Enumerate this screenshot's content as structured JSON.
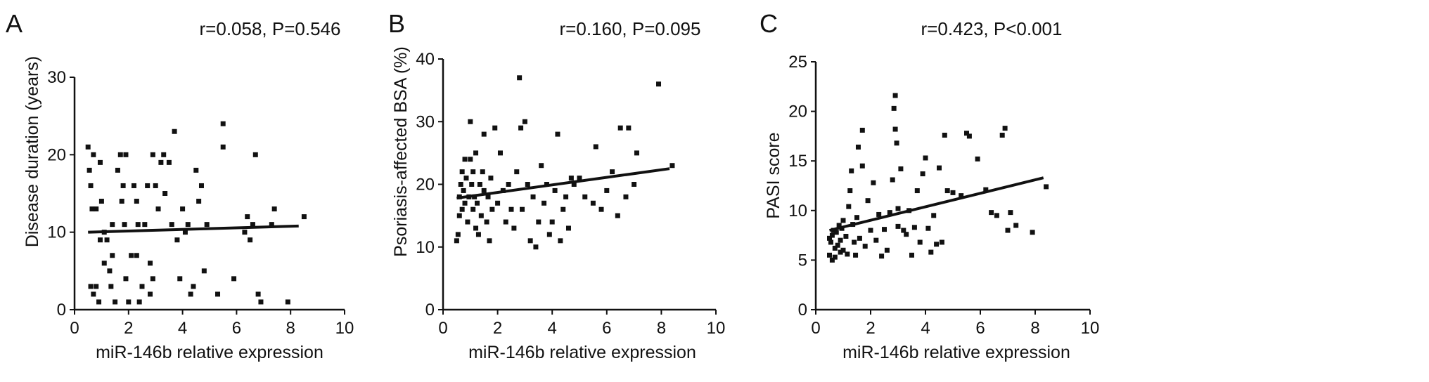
{
  "figure": {
    "panels": [
      {
        "letter": "A",
        "stats": "r=0.058, P=0.546"
      },
      {
        "letter": "B",
        "stats": "r=0.160, P=0.095"
      },
      {
        "letter": "C",
        "stats": "r=0.423, P<0.001"
      }
    ]
  },
  "chart_data": [
    {
      "type": "scatter",
      "title": "r=0.058, P=0.546",
      "xlabel": "miR-146b relative expression",
      "ylabel": "Disease duration (years)",
      "xlim": [
        0,
        10
      ],
      "ylim": [
        0,
        30
      ],
      "xticks": [
        0,
        2,
        4,
        6,
        8,
        10
      ],
      "yticks": [
        0,
        10,
        20,
        30
      ],
      "grid": false,
      "regression": {
        "x": [
          0.5,
          8.3
        ],
        "y": [
          10.0,
          10.8
        ]
      },
      "points": [
        [
          0.5,
          21
        ],
        [
          0.55,
          18
        ],
        [
          0.6,
          16
        ],
        [
          0.65,
          13
        ],
        [
          0.7,
          20
        ],
        [
          0.8,
          13
        ],
        [
          0.95,
          19
        ],
        [
          0.6,
          3
        ],
        [
          0.7,
          2
        ],
        [
          0.8,
          3
        ],
        [
          0.9,
          1
        ],
        [
          0.95,
          9
        ],
        [
          1.0,
          14
        ],
        [
          1.1,
          10
        ],
        [
          1.1,
          6
        ],
        [
          1.2,
          9
        ],
        [
          1.3,
          5
        ],
        [
          1.35,
          3
        ],
        [
          1.4,
          7
        ],
        [
          1.4,
          11
        ],
        [
          1.5,
          1
        ],
        [
          1.6,
          18
        ],
        [
          1.7,
          20
        ],
        [
          1.75,
          14
        ],
        [
          1.8,
          16
        ],
        [
          1.9,
          20
        ],
        [
          1.85,
          11
        ],
        [
          1.9,
          4
        ],
        [
          2.0,
          1
        ],
        [
          2.1,
          7
        ],
        [
          2.2,
          16
        ],
        [
          2.3,
          14
        ],
        [
          2.3,
          7
        ],
        [
          2.35,
          11
        ],
        [
          2.4,
          1
        ],
        [
          2.5,
          3
        ],
        [
          2.6,
          11
        ],
        [
          2.7,
          16
        ],
        [
          2.8,
          6
        ],
        [
          2.9,
          20
        ],
        [
          2.8,
          2
        ],
        [
          2.9,
          4
        ],
        [
          3.0,
          16
        ],
        [
          3.1,
          13
        ],
        [
          3.2,
          19
        ],
        [
          3.3,
          20
        ],
        [
          3.35,
          15
        ],
        [
          3.5,
          19
        ],
        [
          3.6,
          11
        ],
        [
          3.7,
          23
        ],
        [
          3.8,
          9
        ],
        [
          3.9,
          4
        ],
        [
          4.0,
          13
        ],
        [
          4.1,
          10
        ],
        [
          4.2,
          11
        ],
        [
          4.3,
          2
        ],
        [
          4.4,
          3
        ],
        [
          4.5,
          18
        ],
        [
          4.6,
          14
        ],
        [
          4.7,
          16
        ],
        [
          4.8,
          5
        ],
        [
          4.9,
          11
        ],
        [
          5.3,
          2
        ],
        [
          5.5,
          24
        ],
        [
          5.5,
          21
        ],
        [
          5.9,
          4
        ],
        [
          6.3,
          10
        ],
        [
          6.4,
          12
        ],
        [
          6.5,
          9
        ],
        [
          6.6,
          11
        ],
        [
          6.7,
          20
        ],
        [
          6.8,
          2
        ],
        [
          6.9,
          1
        ],
        [
          7.3,
          11
        ],
        [
          7.4,
          13
        ],
        [
          7.9,
          1
        ],
        [
          8.5,
          12
        ]
      ]
    },
    {
      "type": "scatter",
      "title": "r=0.160, P=0.095",
      "xlabel": "miR-146b relative expression",
      "ylabel": "Psoriasis-affected BSA (%)",
      "xlim": [
        0,
        10
      ],
      "ylim": [
        0,
        40
      ],
      "xticks": [
        0,
        2,
        4,
        6,
        8,
        10
      ],
      "yticks": [
        0,
        10,
        20,
        30,
        40
      ],
      "grid": false,
      "regression": {
        "x": [
          0.5,
          8.3
        ],
        "y": [
          17.8,
          22.5
        ]
      },
      "points": [
        [
          0.5,
          11
        ],
        [
          0.55,
          12
        ],
        [
          0.6,
          15
        ],
        [
          0.6,
          18
        ],
        [
          0.65,
          20
        ],
        [
          0.7,
          22
        ],
        [
          0.7,
          16
        ],
        [
          0.75,
          19
        ],
        [
          0.8,
          24
        ],
        [
          0.8,
          17
        ],
        [
          0.85,
          21
        ],
        [
          0.9,
          14
        ],
        [
          0.95,
          18
        ],
        [
          1.0,
          30
        ],
        [
          1.0,
          24
        ],
        [
          1.05,
          20
        ],
        [
          1.1,
          16
        ],
        [
          1.1,
          22
        ],
        [
          1.15,
          18
        ],
        [
          1.2,
          13
        ],
        [
          1.2,
          25
        ],
        [
          1.25,
          17
        ],
        [
          1.3,
          12
        ],
        [
          1.35,
          20
        ],
        [
          1.4,
          15
        ],
        [
          1.45,
          22
        ],
        [
          1.5,
          28
        ],
        [
          1.5,
          19
        ],
        [
          1.6,
          14
        ],
        [
          1.65,
          18
        ],
        [
          1.7,
          11
        ],
        [
          1.75,
          21
        ],
        [
          1.8,
          16
        ],
        [
          1.9,
          29
        ],
        [
          2.0,
          17
        ],
        [
          2.1,
          25
        ],
        [
          2.2,
          19
        ],
        [
          2.3,
          14
        ],
        [
          2.4,
          20
        ],
        [
          2.5,
          16
        ],
        [
          2.6,
          13
        ],
        [
          2.7,
          22
        ],
        [
          2.8,
          37
        ],
        [
          2.85,
          29
        ],
        [
          2.9,
          16
        ],
        [
          3.0,
          30
        ],
        [
          3.1,
          20
        ],
        [
          3.2,
          11
        ],
        [
          3.3,
          18
        ],
        [
          3.4,
          10
        ],
        [
          3.5,
          14
        ],
        [
          3.6,
          23
        ],
        [
          3.7,
          17
        ],
        [
          3.8,
          20
        ],
        [
          3.9,
          12
        ],
        [
          4.0,
          14
        ],
        [
          4.1,
          19
        ],
        [
          4.2,
          28
        ],
        [
          4.3,
          11
        ],
        [
          4.4,
          16
        ],
        [
          4.5,
          18
        ],
        [
          4.6,
          13
        ],
        [
          4.7,
          21
        ],
        [
          4.8,
          20
        ],
        [
          5.0,
          21
        ],
        [
          5.2,
          18
        ],
        [
          5.5,
          17
        ],
        [
          5.6,
          26
        ],
        [
          5.8,
          16
        ],
        [
          6.0,
          19
        ],
        [
          6.2,
          22
        ],
        [
          6.4,
          15
        ],
        [
          6.5,
          29
        ],
        [
          6.7,
          18
        ],
        [
          6.8,
          29
        ],
        [
          7.0,
          20
        ],
        [
          7.1,
          25
        ],
        [
          7.9,
          36
        ],
        [
          8.4,
          23
        ]
      ]
    },
    {
      "type": "scatter",
      "title": "r=0.423, P<0.001",
      "xlabel": "miR-146b relative expression",
      "ylabel": "PASI score",
      "xlim": [
        0,
        10
      ],
      "ylim": [
        0,
        25
      ],
      "xticks": [
        0,
        2,
        4,
        6,
        8,
        10
      ],
      "yticks": [
        0,
        5,
        10,
        15,
        20,
        25
      ],
      "grid": false,
      "regression": {
        "x": [
          0.5,
          8.3
        ],
        "y": [
          8.0,
          13.3
        ]
      },
      "points": [
        [
          0.5,
          5.5
        ],
        [
          0.5,
          7.2
        ],
        [
          0.55,
          6.8
        ],
        [
          0.6,
          5.0
        ],
        [
          0.6,
          7.5
        ],
        [
          0.65,
          8.0
        ],
        [
          0.7,
          6.2
        ],
        [
          0.7,
          5.3
        ],
        [
          0.75,
          7.8
        ],
        [
          0.8,
          6.5
        ],
        [
          0.85,
          8.5
        ],
        [
          0.9,
          5.8
        ],
        [
          0.9,
          7.0
        ],
        [
          0.95,
          8.2
        ],
        [
          1.0,
          6.0
        ],
        [
          1.0,
          9.0
        ],
        [
          1.1,
          7.4
        ],
        [
          1.15,
          5.6
        ],
        [
          1.2,
          10.4
        ],
        [
          1.25,
          12.0
        ],
        [
          1.3,
          14.0
        ],
        [
          1.35,
          8.6
        ],
        [
          1.4,
          6.8
        ],
        [
          1.45,
          5.5
        ],
        [
          1.5,
          9.3
        ],
        [
          1.55,
          16.4
        ],
        [
          1.6,
          7.2
        ],
        [
          1.7,
          18.1
        ],
        [
          1.7,
          14.5
        ],
        [
          1.8,
          6.4
        ],
        [
          1.9,
          11.0
        ],
        [
          2.0,
          8.0
        ],
        [
          2.1,
          12.8
        ],
        [
          2.2,
          7.0
        ],
        [
          2.3,
          9.6
        ],
        [
          2.4,
          5.4
        ],
        [
          2.5,
          8.1
        ],
        [
          2.6,
          6.0
        ],
        [
          2.7,
          9.8
        ],
        [
          2.8,
          13.1
        ],
        [
          2.85,
          20.3
        ],
        [
          2.9,
          21.6
        ],
        [
          2.9,
          18.2
        ],
        [
          2.95,
          16.8
        ],
        [
          3.0,
          10.2
        ],
        [
          3.0,
          8.4
        ],
        [
          3.1,
          14.2
        ],
        [
          3.2,
          8.0
        ],
        [
          3.3,
          7.6
        ],
        [
          3.4,
          10.0
        ],
        [
          3.5,
          5.5
        ],
        [
          3.6,
          8.3
        ],
        [
          3.7,
          12.0
        ],
        [
          3.8,
          6.8
        ],
        [
          3.9,
          13.7
        ],
        [
          4.0,
          15.3
        ],
        [
          4.1,
          8.2
        ],
        [
          4.2,
          5.8
        ],
        [
          4.3,
          9.5
        ],
        [
          4.4,
          6.6
        ],
        [
          4.5,
          14.3
        ],
        [
          4.6,
          6.8
        ],
        [
          4.7,
          17.6
        ],
        [
          4.8,
          12.0
        ],
        [
          5.0,
          11.8
        ],
        [
          5.3,
          11.5
        ],
        [
          5.5,
          17.8
        ],
        [
          5.6,
          17.5
        ],
        [
          5.9,
          15.2
        ],
        [
          6.2,
          12.1
        ],
        [
          6.4,
          9.8
        ],
        [
          6.6,
          9.5
        ],
        [
          6.8,
          17.6
        ],
        [
          6.9,
          18.3
        ],
        [
          7.0,
          8.0
        ],
        [
          7.1,
          9.8
        ],
        [
          7.3,
          8.5
        ],
        [
          7.9,
          7.8
        ],
        [
          8.4,
          12.4
        ]
      ]
    }
  ]
}
